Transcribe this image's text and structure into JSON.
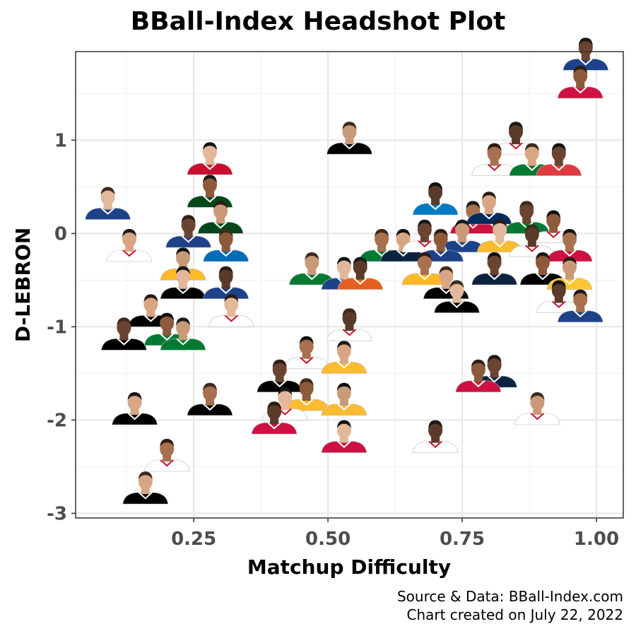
{
  "chart_data": {
    "type": "scatter",
    "title": "BBall-Index Headshot Plot",
    "xlabel": "Matchup Difficulty",
    "ylabel": "D-LEBRON",
    "xlim": [
      0.03,
      1.05
    ],
    "ylim": [
      -3.05,
      1.95
    ],
    "x_ticks": [
      0.25,
      0.5,
      0.75,
      1.0
    ],
    "x_tick_labels": [
      "0.25",
      "0.50",
      "0.75",
      "1.00"
    ],
    "y_ticks": [
      -3,
      -2,
      -1,
      0,
      1
    ],
    "y_tick_labels": [
      "-3",
      "-2",
      "-1",
      "0",
      "1"
    ],
    "grid": true,
    "marker": "player headshot",
    "points": [
      {
        "x": 0.98,
        "y": 1.75,
        "jersey": "#1d428a"
      },
      {
        "x": 0.97,
        "y": 1.45,
        "jersey": "#ce1141"
      },
      {
        "x": 0.54,
        "y": 0.85,
        "jersey": "#000000"
      },
      {
        "x": 0.28,
        "y": 0.63,
        "jersey": "#c8102e"
      },
      {
        "x": 0.85,
        "y": 0.85,
        "jersey": "#ffffff"
      },
      {
        "x": 0.81,
        "y": 0.62,
        "jersey": "#ffffff"
      },
      {
        "x": 0.88,
        "y": 0.62,
        "jersey": "#007a33"
      },
      {
        "x": 0.93,
        "y": 0.62,
        "jersey": "#e03a3e"
      },
      {
        "x": 0.28,
        "y": 0.28,
        "jersey": "#00471b"
      },
      {
        "x": 0.3,
        "y": 0.0,
        "jersey": "#00471b"
      },
      {
        "x": 0.09,
        "y": 0.15,
        "jersey": "#1d428a"
      },
      {
        "x": 0.7,
        "y": 0.2,
        "jersey": "#007ac1"
      },
      {
        "x": 0.77,
        "y": 0.0,
        "jersey": "#ce1141"
      },
      {
        "x": 0.8,
        "y": 0.1,
        "jersey": "#002b5c"
      },
      {
        "x": 0.87,
        "y": 0.0,
        "jersey": "#007a33"
      },
      {
        "x": 0.92,
        "y": -0.1,
        "jersey": "#ffffff"
      },
      {
        "x": 0.75,
        "y": -0.2,
        "jersey": "#1d428a"
      },
      {
        "x": 0.82,
        "y": -0.2,
        "jersey": "#fdbb30"
      },
      {
        "x": 0.88,
        "y": -0.25,
        "jersey": "#ffffff"
      },
      {
        "x": 0.95,
        "y": -0.3,
        "jersey": "#ce1141"
      },
      {
        "x": 0.13,
        "y": -0.3,
        "jersey": "#ffffff"
      },
      {
        "x": 0.24,
        "y": -0.15,
        "jersey": "#1d428a"
      },
      {
        "x": 0.31,
        "y": -0.3,
        "jersey": "#006bb6"
      },
      {
        "x": 0.23,
        "y": -0.5,
        "jersey": "#fdb927"
      },
      {
        "x": 0.23,
        "y": -0.7,
        "jersey": "#000000"
      },
      {
        "x": 0.31,
        "y": -0.7,
        "jersey": "#1d428a"
      },
      {
        "x": 0.6,
        "y": -0.3,
        "jersey": "#007a33"
      },
      {
        "x": 0.64,
        "y": -0.3,
        "jersey": "#0c2340"
      },
      {
        "x": 0.68,
        "y": -0.2,
        "jersey": "#ffffff"
      },
      {
        "x": 0.71,
        "y": -0.3,
        "jersey": "#1d428a"
      },
      {
        "x": 0.47,
        "y": -0.55,
        "jersey": "#007a33"
      },
      {
        "x": 0.53,
        "y": -0.6,
        "jersey": "#1d428a"
      },
      {
        "x": 0.56,
        "y": -0.6,
        "jersey": "#e56020"
      },
      {
        "x": 0.68,
        "y": -0.55,
        "jersey": "#fdb927"
      },
      {
        "x": 0.72,
        "y": -0.7,
        "jersey": "#000000"
      },
      {
        "x": 0.81,
        "y": -0.55,
        "jersey": "#0e2240"
      },
      {
        "x": 0.9,
        "y": -0.55,
        "jersey": "#000000"
      },
      {
        "x": 0.95,
        "y": -0.6,
        "jersey": "#ffc633"
      },
      {
        "x": 0.74,
        "y": -0.85,
        "jersey": "#000000"
      },
      {
        "x": 0.93,
        "y": -0.85,
        "jersey": "#ffffff"
      },
      {
        "x": 0.97,
        "y": -0.95,
        "jersey": "#1d428a"
      },
      {
        "x": 0.17,
        "y": -1.0,
        "jersey": "#000000"
      },
      {
        "x": 0.12,
        "y": -1.25,
        "jersey": "#000000"
      },
      {
        "x": 0.2,
        "y": -1.2,
        "jersey": "#007a33"
      },
      {
        "x": 0.23,
        "y": -1.25,
        "jersey": "#007a33"
      },
      {
        "x": 0.32,
        "y": -1.0,
        "jersey": "#ffffff"
      },
      {
        "x": 0.54,
        "y": -1.15,
        "jersey": "#ffffff"
      },
      {
        "x": 0.46,
        "y": -1.45,
        "jersey": "#ffffff"
      },
      {
        "x": 0.53,
        "y": -1.5,
        "jersey": "#fdbb30"
      },
      {
        "x": 0.41,
        "y": -1.7,
        "jersey": "#000000"
      },
      {
        "x": 0.46,
        "y": -1.9,
        "jersey": "#fdbb30"
      },
      {
        "x": 0.53,
        "y": -1.95,
        "jersey": "#fdbb30"
      },
      {
        "x": 0.42,
        "y": -2.0,
        "jersey": "#ffffff"
      },
      {
        "x": 0.4,
        "y": -2.15,
        "jersey": "#ce1141"
      },
      {
        "x": 0.28,
        "y": -1.95,
        "jersey": "#000000"
      },
      {
        "x": 0.14,
        "y": -2.05,
        "jersey": "#000000"
      },
      {
        "x": 0.81,
        "y": -1.65,
        "jersey": "#0c2340"
      },
      {
        "x": 0.78,
        "y": -1.7,
        "jersey": "#ce1141"
      },
      {
        "x": 0.89,
        "y": -2.05,
        "jersey": "#ffffff"
      },
      {
        "x": 0.53,
        "y": -2.35,
        "jersey": "#ce1141"
      },
      {
        "x": 0.7,
        "y": -2.35,
        "jersey": "#ffffff"
      },
      {
        "x": 0.2,
        "y": -2.55,
        "jersey": "#ffffff"
      },
      {
        "x": 0.16,
        "y": -2.9,
        "jersey": "#000000"
      }
    ]
  },
  "caption": {
    "line1": "Source & Data: BBall-Index.com",
    "line2": "Chart created on July 22, 2022"
  }
}
